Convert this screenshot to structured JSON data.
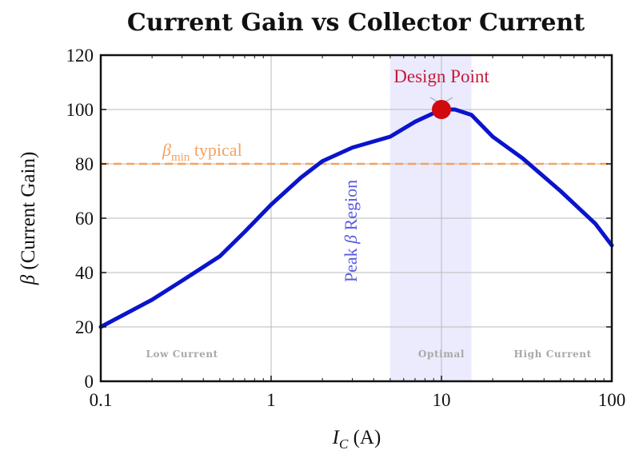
{
  "chart_data": {
    "type": "line",
    "title": "Current Gain vs Collector Current",
    "xlabel": {
      "main": "I",
      "sub": "C",
      "rest": " (A)"
    },
    "ylabel": {
      "symbol": "β",
      "rest": " (Current Gain)"
    },
    "xscale": "log",
    "xlim": [
      0.1,
      100
    ],
    "ylim": [
      0,
      120
    ],
    "xticks": [
      0.1,
      1,
      10,
      100
    ],
    "xtick_labels": [
      "0.1",
      "1",
      "10",
      "100"
    ],
    "yticks": [
      0,
      20,
      40,
      60,
      80,
      100,
      120
    ],
    "ytick_labels": [
      "0",
      "20",
      "40",
      "60",
      "80",
      "100",
      "120"
    ],
    "grid": true,
    "series": [
      {
        "color": "#0a14cc",
        "x": [
          0.1,
          0.2,
          0.3,
          0.5,
          0.7,
          1,
          1.5,
          2,
          3,
          5,
          7,
          10,
          12,
          15,
          20,
          30,
          50,
          80,
          100
        ],
        "y": [
          20,
          30,
          37,
          46,
          55,
          65,
          75,
          81,
          86,
          90,
          95.5,
          100,
          100,
          98,
          90,
          82,
          70,
          58,
          50
        ]
      }
    ],
    "reference_line": {
      "y": 80,
      "color": "#f5a25d",
      "label": {
        "symbol": "β",
        "sub": "min",
        "rest": " typical"
      }
    },
    "highlight_region": {
      "x": [
        5,
        15
      ],
      "color": "#ebebfd",
      "label": {
        "pre": "Peak ",
        "symbol": "β",
        "post": " Region"
      },
      "label_color": "#5a5ae0"
    },
    "design_point": {
      "x": 10,
      "y": 100,
      "label": "Design Point",
      "color": "#d10a10",
      "label_color": "#c8183c"
    },
    "zone_labels": [
      {
        "text": "Low Current",
        "x": 0.3
      },
      {
        "text": "Optimal",
        "x": 10
      },
      {
        "text": "High Current",
        "x": 45
      }
    ]
  }
}
